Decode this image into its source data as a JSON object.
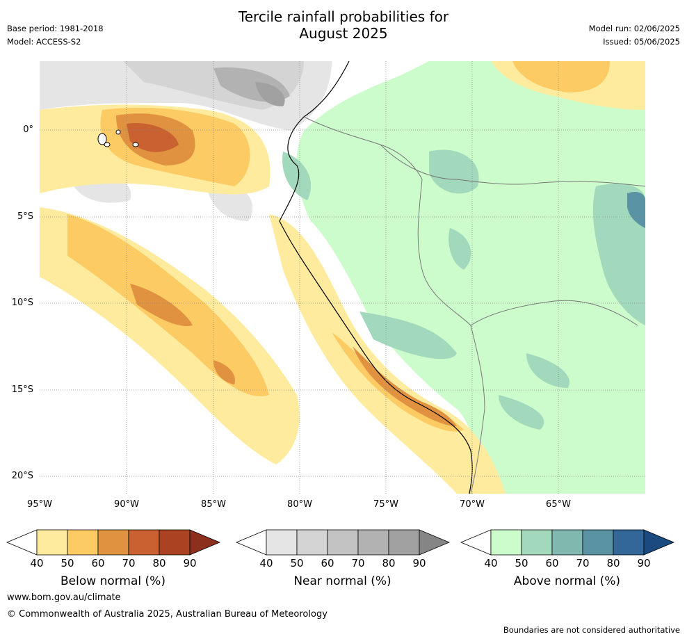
{
  "header": {
    "title_line1": "Tercile rainfall probabilities for",
    "title_line2": "August 2025",
    "base_period": "Base period: 1981-2018",
    "model": "Model: ACCESS-S2",
    "model_run": "Model run: 02/06/2025",
    "issued": "Issued: 05/06/2025"
  },
  "map": {
    "lat_labels": [
      "0°",
      "5°S",
      "10°S",
      "15°S",
      "20°S"
    ],
    "lon_labels": [
      "95°W",
      "90°W",
      "85°W",
      "80°W",
      "75°W",
      "70°W",
      "65°W"
    ],
    "gridlines": true
  },
  "legends": [
    {
      "title": "Below normal (%)",
      "ticks": [
        "40",
        "50",
        "60",
        "70",
        "80",
        "90"
      ],
      "colors": [
        "#ffffff",
        "#ffeb9e",
        "#fdcb64",
        "#e09240",
        "#c96230",
        "#ab4322",
        "#8c2f1c"
      ]
    },
    {
      "title": "Near normal (%)",
      "ticks": [
        "40",
        "50",
        "60",
        "70",
        "80",
        "90"
      ],
      "colors": [
        "#ffffff",
        "#e5e5e5",
        "#d4d4d4",
        "#c3c3c3",
        "#b2b2b2",
        "#a1a1a1",
        "#858585"
      ]
    },
    {
      "title": "Above normal (%)",
      "ticks": [
        "40",
        "50",
        "60",
        "70",
        "80",
        "90"
      ],
      "colors": [
        "#ffffff",
        "#ccfccc",
        "#a2d8bb",
        "#80b8b0",
        "#5a93a3",
        "#336699",
        "#1a4a80"
      ]
    }
  ],
  "footer": {
    "url": "www.bom.gov.au/climate",
    "copyright": "© Commonwealth of Australia 2025, Australian Bureau of Meteorology",
    "note": "Boundaries are not considered authoritative"
  }
}
